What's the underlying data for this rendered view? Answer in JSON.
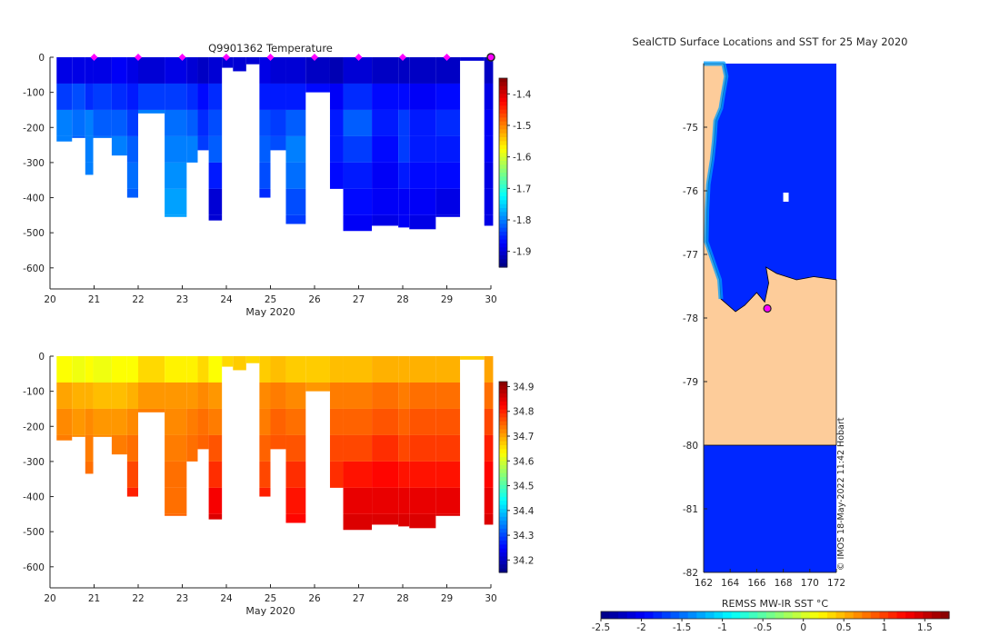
{
  "chart_data": [
    {
      "id": "temp",
      "type": "heatmap",
      "title": "Q9901362  Temperature",
      "xlabel": "May 2020",
      "ylabel": "",
      "xlim": [
        20,
        30
      ],
      "ylim": [
        -660,
        0
      ],
      "x_ticks": [
        20,
        21,
        22,
        23,
        24,
        25,
        26,
        27,
        28,
        29,
        30
      ],
      "y_ticks": [
        0,
        -100,
        -200,
        -300,
        -400,
        -500,
        -600
      ],
      "colorbar": {
        "min": -1.95,
        "max": -1.35,
        "ticks": [
          -1.4,
          -1.5,
          -1.6,
          -1.7,
          -1.8,
          -1.9
        ]
      },
      "profile_markers": [
        21,
        22,
        23,
        24,
        25,
        26,
        27,
        28,
        29
      ],
      "last_profile": 30,
      "profiles": [
        {
          "x0": 20.15,
          "x1": 20.5,
          "bottom": -240,
          "values": [
            -1.89,
            -1.84,
            -1.8,
            -1.8,
            -1.81,
            -1.82
          ]
        },
        {
          "x0": 20.5,
          "x1": 20.8,
          "bottom": -230,
          "values": [
            -1.89,
            -1.83,
            -1.81,
            -1.82,
            -1.82
          ]
        },
        {
          "x0": 20.8,
          "x1": 20.98,
          "bottom": -335,
          "values": [
            -1.89,
            -1.85,
            -1.8,
            -1.8,
            -1.8
          ]
        },
        {
          "x0": 20.98,
          "x1": 21.4,
          "bottom": -230,
          "values": [
            -1.89,
            -1.84,
            -1.82,
            -1.81,
            -1.8
          ]
        },
        {
          "x0": 21.4,
          "x1": 21.75,
          "bottom": -280,
          "values": [
            -1.88,
            -1.85,
            -1.82,
            -1.8,
            -1.8
          ]
        },
        {
          "x0": 21.75,
          "x1": 22.0,
          "bottom": -400,
          "values": [
            -1.89,
            -1.86,
            -1.84,
            -1.82,
            -1.81,
            -1.82
          ]
        },
        {
          "x0": 22.0,
          "x1": 22.6,
          "bottom": -160,
          "values": [
            -1.9,
            -1.84,
            -1.8
          ]
        },
        {
          "x0": 22.6,
          "x1": 23.1,
          "bottom": -455,
          "values": [
            -1.89,
            -1.84,
            -1.81,
            -1.8,
            -1.79,
            -1.78,
            -1.78
          ]
        },
        {
          "x0": 23.1,
          "x1": 23.35,
          "bottom": -300,
          "values": [
            -1.9,
            -1.85,
            -1.82,
            -1.8,
            -1.81
          ]
        },
        {
          "x0": 23.35,
          "x1": 23.6,
          "bottom": -265,
          "values": [
            -1.91,
            -1.87,
            -1.85,
            -1.84
          ]
        },
        {
          "x0": 23.6,
          "x1": 23.9,
          "bottom": -465,
          "values": [
            -1.9,
            -1.85,
            -1.83,
            -1.82,
            -1.86,
            -1.9,
            -1.9
          ]
        },
        {
          "x0": 23.9,
          "x1": 24.15,
          "bottom": -30,
          "values": [
            -1.9
          ]
        },
        {
          "x0": 24.15,
          "x1": 24.45,
          "bottom": -40,
          "values": [
            -1.9
          ]
        },
        {
          "x0": 24.45,
          "x1": 24.75,
          "bottom": -20,
          "values": [
            -1.9
          ]
        },
        {
          "x0": 24.75,
          "x1": 25.0,
          "bottom": -400,
          "values": [
            -1.89,
            -1.86,
            -1.83,
            -1.82,
            -1.83,
            -1.85
          ]
        },
        {
          "x0": 25.0,
          "x1": 25.35,
          "bottom": -265,
          "values": [
            -1.9,
            -1.86,
            -1.84,
            -1.83
          ]
        },
        {
          "x0": 25.35,
          "x1": 25.8,
          "bottom": -475,
          "values": [
            -1.9,
            -1.86,
            -1.82,
            -1.8,
            -1.81,
            -1.83,
            -1.84
          ]
        },
        {
          "x0": 25.8,
          "x1": 26.35,
          "bottom": -100,
          "values": [
            -1.91,
            -1.87
          ]
        },
        {
          "x0": 26.35,
          "x1": 26.65,
          "bottom": -375,
          "values": [
            -1.92,
            -1.88,
            -1.86,
            -1.86,
            -1.87,
            -1.87
          ]
        },
        {
          "x0": 26.65,
          "x1": 27.3,
          "bottom": -495,
          "values": [
            -1.9,
            -1.85,
            -1.82,
            -1.84,
            -1.86,
            -1.87,
            -1.88
          ]
        },
        {
          "x0": 27.3,
          "x1": 27.9,
          "bottom": -480,
          "values": [
            -1.91,
            -1.87,
            -1.86,
            -1.87,
            -1.88,
            -1.88,
            -1.89
          ]
        },
        {
          "x0": 27.9,
          "x1": 28.15,
          "bottom": -485,
          "values": [
            -1.91,
            -1.87,
            -1.84,
            -1.84,
            -1.86,
            -1.88,
            -1.88
          ]
        },
        {
          "x0": 28.15,
          "x1": 28.75,
          "bottom": -490,
          "values": [
            -1.91,
            -1.88,
            -1.86,
            -1.86,
            -1.87,
            -1.88,
            -1.89
          ]
        },
        {
          "x0": 28.75,
          "x1": 29.3,
          "bottom": -455,
          "values": [
            -1.91,
            -1.87,
            -1.85,
            -1.86,
            -1.87,
            -1.89,
            -1.89
          ]
        },
        {
          "x0": 29.3,
          "x1": 29.85,
          "bottom": -10,
          "values": [
            -1.9
          ]
        },
        {
          "x0": 29.85,
          "x1": 30.05,
          "bottom": -480,
          "values": [
            -1.91,
            -1.89,
            -1.88,
            -1.88,
            -1.89,
            -1.89,
            -1.89
          ]
        }
      ]
    },
    {
      "id": "sal",
      "type": "heatmap",
      "title": "",
      "xlabel": "May 2020",
      "ylabel": "",
      "xlim": [
        20,
        30
      ],
      "ylim": [
        -660,
        0
      ],
      "x_ticks": [
        20,
        21,
        22,
        23,
        24,
        25,
        26,
        27,
        28,
        29,
        30
      ],
      "y_ticks": [
        0,
        -100,
        -200,
        -300,
        -400,
        -500,
        -600
      ],
      "colorbar": {
        "min": 34.15,
        "max": 34.92,
        "ticks": [
          34.9,
          34.8,
          34.7,
          34.6,
          34.5,
          34.4,
          34.3,
          34.2
        ]
      },
      "profiles": [
        {
          "x0": 20.15,
          "x1": 20.5,
          "bottom": -240,
          "values": [
            34.63,
            34.7,
            34.72,
            34.73,
            34.73,
            34.74
          ]
        },
        {
          "x0": 20.5,
          "x1": 20.8,
          "bottom": -230,
          "values": [
            34.62,
            34.69,
            34.71,
            34.72,
            34.73
          ]
        },
        {
          "x0": 20.8,
          "x1": 20.98,
          "bottom": -335,
          "values": [
            34.63,
            34.69,
            34.72,
            34.73,
            34.74
          ]
        },
        {
          "x0": 20.98,
          "x1": 21.4,
          "bottom": -230,
          "values": [
            34.62,
            34.68,
            34.71,
            34.72,
            34.73
          ]
        },
        {
          "x0": 21.4,
          "x1": 21.75,
          "bottom": -280,
          "values": [
            34.63,
            34.68,
            34.71,
            34.73,
            34.74
          ]
        },
        {
          "x0": 21.75,
          "x1": 22.0,
          "bottom": -400,
          "values": [
            34.63,
            34.69,
            34.72,
            34.74,
            34.77,
            34.8
          ]
        },
        {
          "x0": 22.0,
          "x1": 22.6,
          "bottom": -160,
          "values": [
            34.66,
            34.71,
            34.73
          ]
        },
        {
          "x0": 22.6,
          "x1": 23.1,
          "bottom": -455,
          "values": [
            34.64,
            34.71,
            34.72,
            34.73,
            34.74,
            34.74,
            34.75
          ]
        },
        {
          "x0": 23.1,
          "x1": 23.35,
          "bottom": -300,
          "values": [
            34.64,
            34.71,
            34.73,
            34.74,
            34.76
          ]
        },
        {
          "x0": 23.35,
          "x1": 23.6,
          "bottom": -265,
          "values": [
            34.66,
            34.72,
            34.74,
            34.75
          ]
        },
        {
          "x0": 23.6,
          "x1": 23.9,
          "bottom": -465,
          "values": [
            34.63,
            34.71,
            34.73,
            34.76,
            34.79,
            34.83,
            34.85
          ]
        },
        {
          "x0": 23.9,
          "x1": 24.15,
          "bottom": -30,
          "values": [
            34.66
          ]
        },
        {
          "x0": 24.15,
          "x1": 24.45,
          "bottom": -40,
          "values": [
            34.67
          ]
        },
        {
          "x0": 24.45,
          "x1": 24.75,
          "bottom": -20,
          "values": [
            34.66
          ]
        },
        {
          "x0": 24.75,
          "x1": 25.0,
          "bottom": -400,
          "values": [
            34.67,
            34.72,
            34.73,
            34.75,
            34.77,
            34.8
          ]
        },
        {
          "x0": 25.0,
          "x1": 25.35,
          "bottom": -265,
          "values": [
            34.68,
            34.73,
            34.75,
            34.76
          ]
        },
        {
          "x0": 25.35,
          "x1": 25.8,
          "bottom": -475,
          "values": [
            34.67,
            34.72,
            34.74,
            34.76,
            34.79,
            34.81,
            34.82
          ]
        },
        {
          "x0": 25.8,
          "x1": 26.35,
          "bottom": -100,
          "values": [
            34.67,
            34.71
          ]
        },
        {
          "x0": 26.35,
          "x1": 26.65,
          "bottom": -375,
          "values": [
            34.68,
            34.73,
            34.75,
            34.77,
            34.79,
            34.8
          ]
        },
        {
          "x0": 26.65,
          "x1": 27.3,
          "bottom": -495,
          "values": [
            34.68,
            34.73,
            34.75,
            34.77,
            34.81,
            34.84,
            34.85
          ]
        },
        {
          "x0": 27.3,
          "x1": 27.9,
          "bottom": -480,
          "values": [
            34.69,
            34.74,
            34.76,
            34.79,
            34.82,
            34.84,
            34.85
          ]
        },
        {
          "x0": 27.9,
          "x1": 28.15,
          "bottom": -485,
          "values": [
            34.69,
            34.73,
            34.75,
            34.77,
            34.81,
            34.84,
            34.85
          ]
        },
        {
          "x0": 28.15,
          "x1": 28.75,
          "bottom": -490,
          "values": [
            34.69,
            34.74,
            34.76,
            34.78,
            34.81,
            34.84,
            34.85
          ]
        },
        {
          "x0": 28.75,
          "x1": 29.3,
          "bottom": -455,
          "values": [
            34.69,
            34.74,
            34.76,
            34.78,
            34.81,
            34.84,
            34.85
          ]
        },
        {
          "x0": 29.3,
          "x1": 29.85,
          "bottom": -10,
          "values": [
            34.67
          ]
        },
        {
          "x0": 29.85,
          "x1": 30.05,
          "bottom": -480,
          "values": [
            34.7,
            34.74,
            34.77,
            34.8,
            34.82,
            34.84,
            34.85
          ]
        }
      ]
    },
    {
      "id": "map",
      "type": "heatmap",
      "title": "SealCTD Surface Locations and SST for 25 May 2020",
      "xlabel": "",
      "ylabel": "",
      "xlim": [
        162,
        172
      ],
      "ylim": [
        -82,
        -74
      ],
      "x_ticks": [
        162,
        164,
        166,
        168,
        170,
        172
      ],
      "y_ticks": [
        -75,
        -76,
        -77,
        -78,
        -79,
        -80,
        -81,
        -82
      ],
      "colorbar": {
        "label": "REMSS MW-IR SST °C",
        "min": -2.5,
        "max": 1.8,
        "ticks": [
          -2.5,
          -2,
          -1.5,
          -1,
          -0.5,
          0,
          0.5,
          1,
          1.5
        ]
      },
      "sst_open_ocean": -1.8,
      "sst_coastal": -1.3,
      "coastline": [
        [
          162.0,
          -74.0
        ],
        [
          163.5,
          -74.0
        ],
        [
          163.7,
          -74.2
        ],
        [
          163.45,
          -74.5
        ],
        [
          163.3,
          -74.7
        ],
        [
          162.9,
          -74.9
        ],
        [
          162.8,
          -75.2
        ],
        [
          162.65,
          -75.5
        ],
        [
          162.35,
          -75.9
        ],
        [
          162.25,
          -76.3
        ],
        [
          162.2,
          -76.8
        ],
        [
          162.7,
          -77.1
        ],
        [
          163.2,
          -77.4
        ],
        [
          163.3,
          -77.7
        ],
        [
          164.4,
          -77.9
        ],
        [
          165.1,
          -77.8
        ],
        [
          166.0,
          -77.6
        ],
        [
          166.6,
          -77.75
        ],
        [
          166.9,
          -77.45
        ],
        [
          166.7,
          -77.2
        ],
        [
          167.5,
          -77.3
        ],
        [
          169.0,
          -77.4
        ],
        [
          170.3,
          -77.35
        ],
        [
          172.0,
          -77.4
        ],
        [
          172.0,
          -80.0
        ],
        [
          162.0,
          -80.0
        ]
      ],
      "islands": [
        {
          "lon": 168.2,
          "lat": -76.1
        }
      ],
      "seal_locations": [
        {
          "lon": 166.8,
          "lat": -77.85
        }
      ],
      "credit": "© IMOS 18-May-2022 11:42 Hobart"
    }
  ]
}
